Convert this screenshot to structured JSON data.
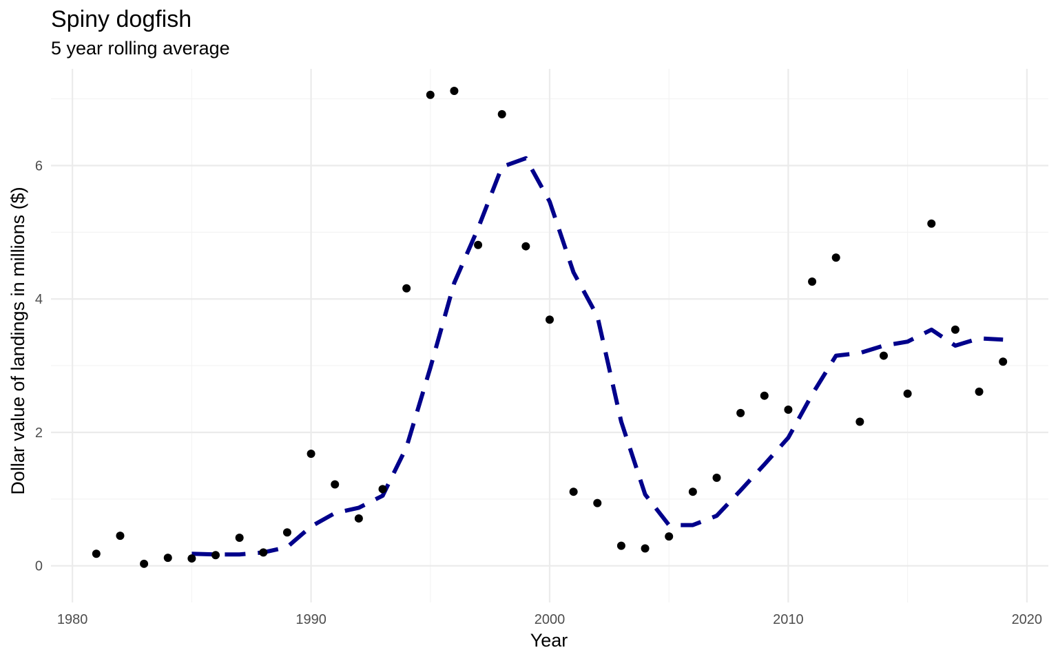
{
  "chart_data": {
    "type": "scatter",
    "title": "Spiny dogfish",
    "subtitle": "5 year rolling average",
    "xlabel": "Year",
    "ylabel": "Dollar value of landings in millions ($)",
    "xlim": [
      1979.1,
      2020.9
    ],
    "ylim": [
      -0.55,
      7.45
    ],
    "x_ticks": [
      1980,
      1990,
      2000,
      2010,
      2020
    ],
    "y_ticks": [
      0,
      2,
      4,
      6
    ],
    "x_tick_labels": [
      "1980",
      "1990",
      "2000",
      "2010",
      "2020"
    ],
    "y_tick_labels": [
      "0",
      "2",
      "4",
      "6"
    ],
    "grid": true,
    "legend": "none",
    "series": [
      {
        "type": "scatter",
        "color": "#000000",
        "x": [
          1981,
          1982,
          1983,
          1984,
          1985,
          1986,
          1987,
          1988,
          1989,
          1990,
          1991,
          1992,
          1993,
          1994,
          1995,
          1996,
          1997,
          1998,
          1999,
          2000,
          2001,
          2002,
          2003,
          2004,
          2005,
          2006,
          2007,
          2008,
          2009,
          2010,
          2011,
          2012,
          2013,
          2014,
          2015,
          2016,
          2017,
          2018,
          2019
        ],
        "y": [
          0.18,
          0.45,
          0.03,
          0.12,
          0.11,
          0.16,
          0.42,
          0.2,
          0.5,
          1.68,
          1.22,
          0.71,
          1.15,
          4.16,
          7.06,
          7.12,
          4.81,
          6.77,
          4.79,
          3.69,
          1.11,
          0.94,
          0.3,
          0.26,
          0.44,
          1.11,
          1.32,
          2.29,
          2.55,
          2.34,
          4.26,
          4.62,
          2.16,
          3.15,
          2.58,
          5.13,
          3.54,
          2.61,
          3.06
        ]
      },
      {
        "type": "line",
        "style": "dashed",
        "color": "#00008b",
        "x": [
          1985,
          1986,
          1987,
          1988,
          1989,
          1990,
          1991,
          1992,
          1993,
          1994,
          1995,
          1996,
          1997,
          1998,
          1999,
          2000,
          2001,
          2002,
          2003,
          2004,
          2005,
          2006,
          2007,
          2008,
          2009,
          2010,
          2011,
          2012,
          2013,
          2014,
          2015,
          2016,
          2017,
          2018,
          2019
        ],
        "y": [
          0.18,
          0.17,
          0.17,
          0.2,
          0.28,
          0.59,
          0.79,
          0.87,
          1.05,
          1.78,
          2.97,
          4.24,
          5.06,
          5.98,
          6.11,
          5.46,
          4.4,
          3.74,
          2.16,
          1.07,
          0.61,
          0.61,
          0.75,
          1.13,
          1.52,
          1.92,
          2.57,
          3.15,
          3.19,
          3.3,
          3.36,
          3.54,
          3.3,
          3.41,
          3.39
        ]
      }
    ]
  }
}
